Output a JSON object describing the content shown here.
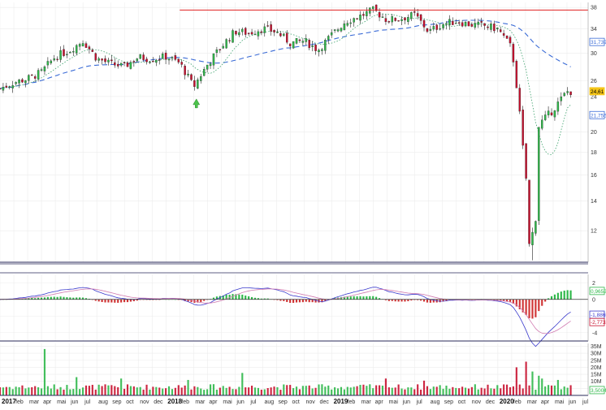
{
  "chart_data": {
    "type": "candlestick",
    "title": "",
    "x_axis": {
      "start": "2017-01",
      "end": "2020-07",
      "tick_labels": [
        {
          "date": "2017-01",
          "label": "2017",
          "year": true
        },
        {
          "date": "2017-02",
          "label": "feb"
        },
        {
          "date": "2017-03",
          "label": "mar"
        },
        {
          "date": "2017-04",
          "label": "apr"
        },
        {
          "date": "2017-05",
          "label": "mai"
        },
        {
          "date": "2017-06",
          "label": "jun"
        },
        {
          "date": "2017-07",
          "label": "jul"
        },
        {
          "date": "2017-08",
          "label": "aug"
        },
        {
          "date": "2017-09",
          "label": "sep"
        },
        {
          "date": "2017-10",
          "label": "oct"
        },
        {
          "date": "2017-11",
          "label": "nov"
        },
        {
          "date": "2017-12",
          "label": "dec"
        },
        {
          "date": "2018-01",
          "label": "2018",
          "year": true
        },
        {
          "date": "2018-02",
          "label": "feb"
        },
        {
          "date": "2018-03",
          "label": "mar"
        },
        {
          "date": "2018-04",
          "label": "apr"
        },
        {
          "date": "2018-05",
          "label": "mai"
        },
        {
          "date": "2018-06",
          "label": "jun"
        },
        {
          "date": "2018-07",
          "label": "jul"
        },
        {
          "date": "2018-08",
          "label": "aug"
        },
        {
          "date": "2018-09",
          "label": "sep"
        },
        {
          "date": "2018-10",
          "label": "oct"
        },
        {
          "date": "2018-11",
          "label": "nov"
        },
        {
          "date": "2018-12",
          "label": "dec"
        },
        {
          "date": "2019-01",
          "label": "2019",
          "year": true
        },
        {
          "date": "2019-02",
          "label": "feb"
        },
        {
          "date": "2019-03",
          "label": "mar"
        },
        {
          "date": "2019-04",
          "label": "apr"
        },
        {
          "date": "2019-05",
          "label": "mai"
        },
        {
          "date": "2019-06",
          "label": "jun"
        },
        {
          "date": "2019-07",
          "label": "jul"
        },
        {
          "date": "2019-08",
          "label": "aug"
        },
        {
          "date": "2019-09",
          "label": "sep"
        },
        {
          "date": "2019-10",
          "label": "oct"
        },
        {
          "date": "2019-11",
          "label": "nov"
        },
        {
          "date": "2019-12",
          "label": "dec"
        },
        {
          "date": "2020-01",
          "label": "2020",
          "year": true
        },
        {
          "date": "2020-02",
          "label": "feb"
        },
        {
          "date": "2020-03",
          "label": "mar"
        },
        {
          "date": "2020-04",
          "label": "apr"
        },
        {
          "date": "2020-05",
          "label": "mai"
        },
        {
          "date": "2020-06",
          "label": "jun"
        },
        {
          "date": "2020-07",
          "label": "jul"
        }
      ]
    },
    "price_panel": {
      "y_scale": "log",
      "ylim": [
        10.2,
        39
      ],
      "y_ticks": [
        12,
        14,
        16,
        18,
        20,
        24,
        26,
        30,
        34,
        38
      ],
      "resistance_line": {
        "value": 37.5,
        "color": "#e02020"
      },
      "last_price": {
        "label": "24,61",
        "value": 24.61,
        "color": "#f5c518"
      },
      "ma_long_label": {
        "label": "31,739",
        "value": 31.739,
        "color": "#3a6bd6"
      },
      "ma_short_label": {
        "label": "21,756",
        "value": 21.756,
        "color": "#3a6bd6"
      },
      "up_color": "#2fb84a",
      "down_color": "#c8102e",
      "candles_monthly_anchor": [
        {
          "date": "2017-01",
          "close": 25.0
        },
        {
          "date": "2017-02",
          "close": 25.8
        },
        {
          "date": "2017-03",
          "close": 26.3
        },
        {
          "date": "2017-04",
          "close": 27.2
        },
        {
          "date": "2017-05",
          "close": 29.5
        },
        {
          "date": "2017-06",
          "close": 30.4
        },
        {
          "date": "2017-07",
          "close": 32.0
        },
        {
          "date": "2017-08",
          "close": 29.2
        },
        {
          "date": "2017-09",
          "close": 28.4
        },
        {
          "date": "2017-10",
          "close": 28.0
        },
        {
          "date": "2017-11",
          "close": 29.4
        },
        {
          "date": "2017-12",
          "close": 29.1
        },
        {
          "date": "2018-01",
          "close": 29.5
        },
        {
          "date": "2018-02",
          "close": 28.5
        },
        {
          "date": "2018-03",
          "close": 25.2
        },
        {
          "date": "2018-04",
          "close": 28.3
        },
        {
          "date": "2018-05",
          "close": 31.0
        },
        {
          "date": "2018-06",
          "close": 33.6
        },
        {
          "date": "2018-07",
          "close": 33.3
        },
        {
          "date": "2018-08",
          "close": 34.1
        },
        {
          "date": "2018-09",
          "close": 33.5
        },
        {
          "date": "2018-10",
          "close": 31.6
        },
        {
          "date": "2018-11",
          "close": 32.0
        },
        {
          "date": "2018-12",
          "close": 30.5
        },
        {
          "date": "2019-01",
          "close": 33.0
        },
        {
          "date": "2019-02",
          "close": 35.4
        },
        {
          "date": "2019-03",
          "close": 36.3
        },
        {
          "date": "2019-04",
          "close": 37.5
        },
        {
          "date": "2019-05",
          "close": 35.6
        },
        {
          "date": "2019-06",
          "close": 35.9
        },
        {
          "date": "2019-07",
          "close": 36.6
        },
        {
          "date": "2019-08",
          "close": 33.5
        },
        {
          "date": "2019-09",
          "close": 34.9
        },
        {
          "date": "2019-10",
          "close": 35.4
        },
        {
          "date": "2019-11",
          "close": 34.8
        },
        {
          "date": "2019-12",
          "close": 34.6
        },
        {
          "date": "2020-01",
          "close": 34.0
        },
        {
          "date": "2020-02",
          "close": 30.8
        },
        {
          "date": "2020-03",
          "close": 15.5
        },
        {
          "date": "2020-04",
          "close": 20.8
        },
        {
          "date": "2020-05",
          "close": 22.4
        },
        {
          "date": "2020-06",
          "close": 24.61
        }
      ]
    },
    "macd_panel": {
      "ylim": [
        -5,
        3
      ],
      "y_ticks": [
        2,
        0,
        -2,
        -4
      ],
      "labels": [
        {
          "label": "0,96525",
          "value": 0.965,
          "color": "#2fb84a"
        },
        {
          "label": "-1,8865",
          "value": -1.886,
          "color": "#3a3acc"
        },
        {
          "label": "-2,7732",
          "value": -2.773,
          "color": "#c8102e"
        }
      ],
      "macd_color": "#3a3acc",
      "signal_color": "#d07ab0",
      "hist_up": "#2fb84a",
      "hist_down": "#d03535"
    },
    "volume_panel": {
      "ylim": [
        0,
        37000000
      ],
      "y_ticks": [
        {
          "label": "35M",
          "value": 35000000
        },
        {
          "label": "30M",
          "value": 30000000
        },
        {
          "label": "25M",
          "value": 25000000
        },
        {
          "label": "20M",
          "value": 20000000
        },
        {
          "label": "15M",
          "value": 15000000
        },
        {
          "label": "10M",
          "value": 10000000
        },
        {
          "label": "5M",
          "value": 5000000
        }
      ],
      "last_volume_label": {
        "label": "3,5004M",
        "value": 3500400
      }
    }
  }
}
